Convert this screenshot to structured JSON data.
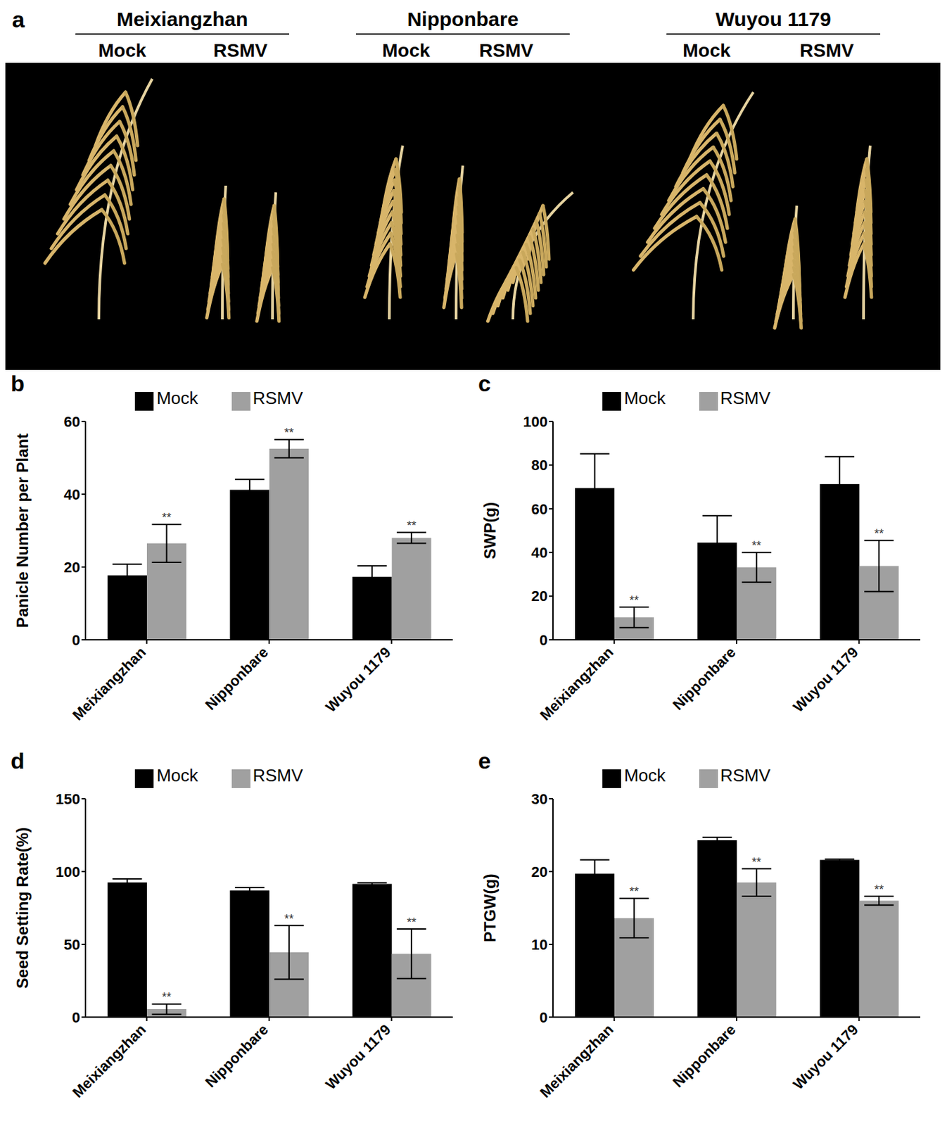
{
  "panel_a": {
    "panel": "a",
    "groups": [
      {
        "name": "Meixiangzhan",
        "conditions": [
          "Mock",
          "RSMV"
        ]
      },
      {
        "name": "Nipponbare",
        "conditions": [
          "Mock",
          "RSMV"
        ]
      },
      {
        "name": "Wuyou 1179",
        "conditions": [
          "Mock",
          "RSMV"
        ]
      }
    ]
  },
  "chart_data": [
    {
      "panel": "b",
      "type": "bar",
      "y_label": "Panicle Number per Plant",
      "categories": [
        "Meixiangzhan",
        "Nipponbare",
        "Wuyou 1179"
      ],
      "series": [
        {
          "name": "Mock",
          "color": "#000000",
          "values": [
            17.7,
            41.2,
            17.3
          ],
          "errors": [
            3.1,
            2.9,
            3.0
          ]
        },
        {
          "name": "RSMV",
          "color": "#a0a0a0",
          "values": [
            26.5,
            52.5,
            28.0
          ],
          "errors": [
            5.2,
            2.5,
            1.5
          ],
          "significance": [
            "**",
            "**",
            "**"
          ]
        }
      ],
      "ylim": [
        0,
        60
      ],
      "yticks": [
        0,
        20,
        40,
        60
      ],
      "grid": false,
      "legend": "top"
    },
    {
      "panel": "c",
      "type": "bar",
      "y_label": "SWP(g)",
      "categories": [
        "Meixiangzhan",
        "Nipponbare",
        "Wuyou 1179"
      ],
      "series": [
        {
          "name": "Mock",
          "color": "#000000",
          "values": [
            69.5,
            44.5,
            71.3
          ],
          "errors": [
            15.7,
            12.3,
            12.6
          ]
        },
        {
          "name": "RSMV",
          "color": "#a0a0a0",
          "values": [
            10.3,
            33.2,
            33.8
          ],
          "errors": [
            4.7,
            6.8,
            11.7
          ],
          "significance": [
            "**",
            "**",
            "**"
          ]
        }
      ],
      "ylim": [
        0,
        100
      ],
      "yticks": [
        0,
        20,
        40,
        60,
        80,
        100
      ],
      "grid": false,
      "legend": "top"
    },
    {
      "panel": "d",
      "type": "bar",
      "y_label": "Seed Setting Rate(%)",
      "categories": [
        "Meixiangzhan",
        "Nipponbare",
        "Wuyou 1179"
      ],
      "series": [
        {
          "name": "Mock",
          "color": "#000000",
          "values": [
            92.5,
            87.0,
            91.5
          ],
          "errors": [
            2.5,
            2.0,
            0.8
          ]
        },
        {
          "name": "RSMV",
          "color": "#a0a0a0",
          "values": [
            5.5,
            44.5,
            43.5
          ],
          "errors": [
            3.5,
            18.5,
            17.0
          ],
          "significance": [
            "**",
            "**",
            "**"
          ]
        }
      ],
      "ylim": [
        0,
        150
      ],
      "yticks": [
        0,
        50,
        100,
        150
      ],
      "grid": false,
      "legend": "top"
    },
    {
      "panel": "e",
      "type": "bar",
      "y_label": "PTGW(g)",
      "categories": [
        "Meixiangzhan",
        "Nipponbare",
        "Wuyou 1179"
      ],
      "series": [
        {
          "name": "Mock",
          "color": "#000000",
          "values": [
            19.7,
            24.3,
            21.6
          ],
          "errors": [
            1.9,
            0.4,
            0.1
          ]
        },
        {
          "name": "RSMV",
          "color": "#a0a0a0",
          "values": [
            13.6,
            18.5,
            16.0
          ],
          "errors": [
            2.7,
            1.9,
            0.6
          ],
          "significance": [
            "**",
            "**",
            "**"
          ]
        }
      ],
      "ylim": [
        0,
        30
      ],
      "yticks": [
        0,
        10,
        20,
        30
      ],
      "grid": false,
      "legend": "top"
    }
  ]
}
